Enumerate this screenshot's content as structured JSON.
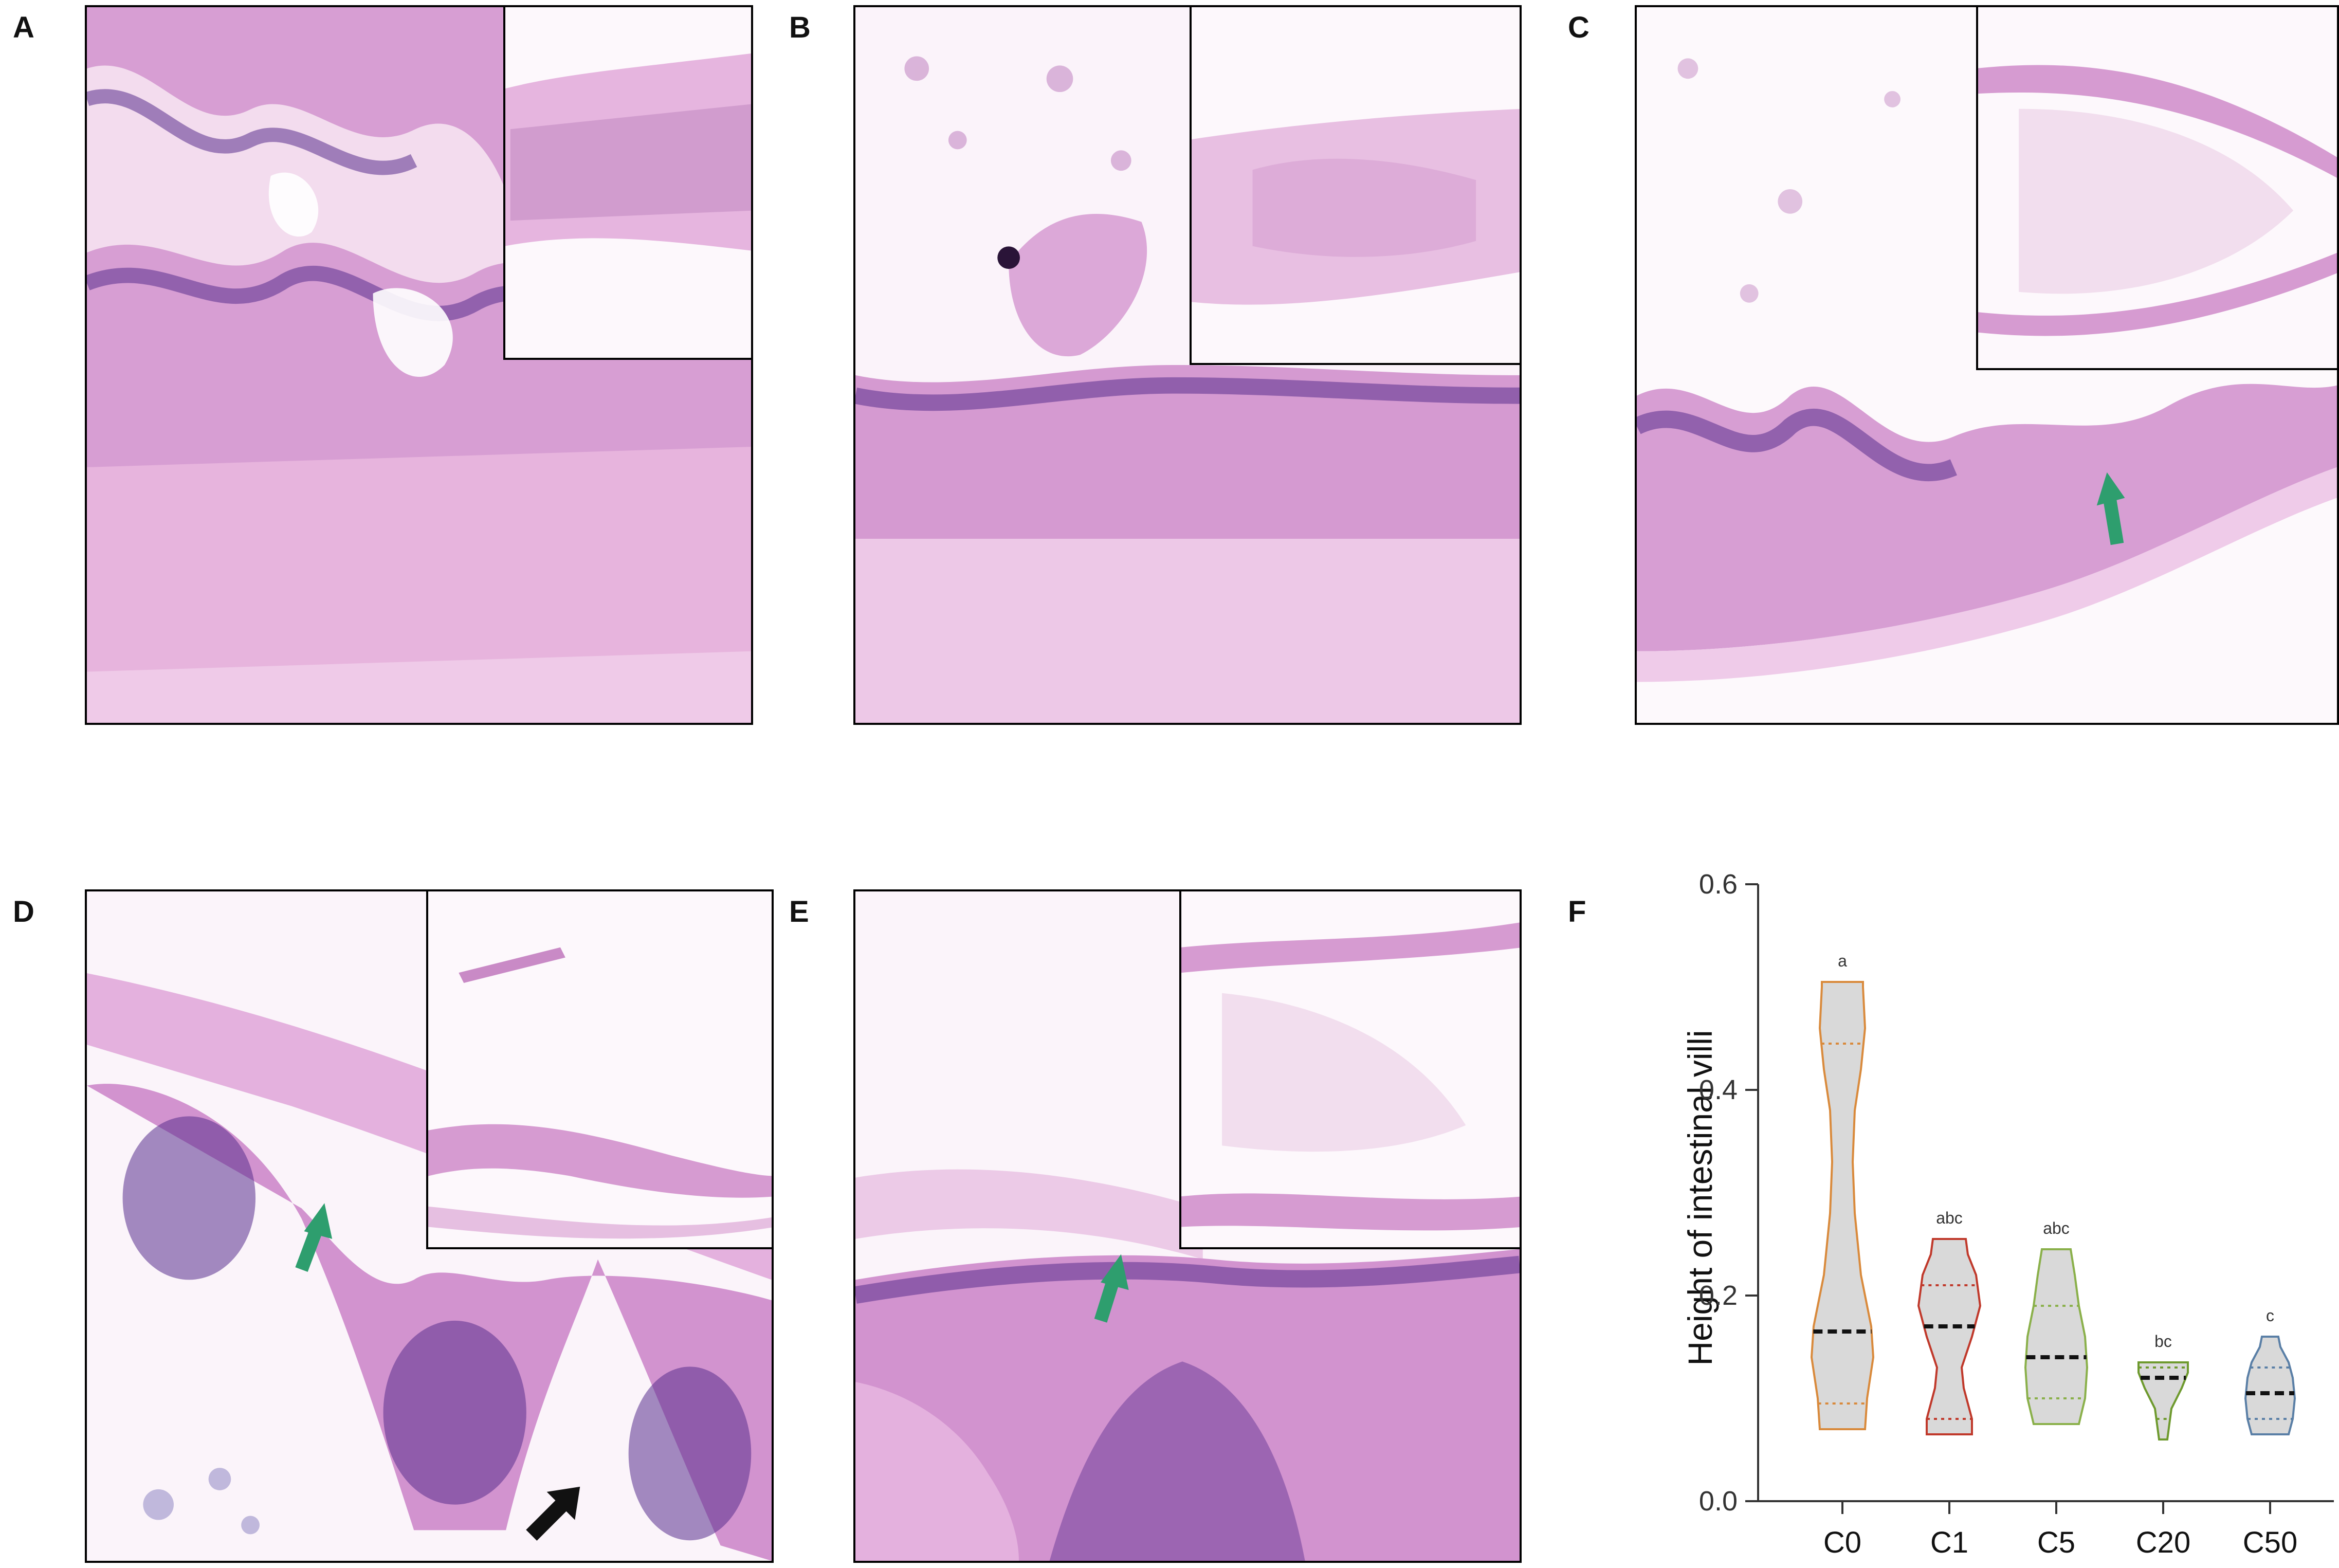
{
  "panels": [
    {
      "label": "A"
    },
    {
      "label": "B"
    },
    {
      "label": "C"
    },
    {
      "label": "D"
    },
    {
      "label": "E"
    },
    {
      "label": "F"
    }
  ],
  "colors": {
    "tissue_light": "#e8b6dc",
    "tissue_mid": "#c77cc2",
    "nuclei": "#5a2f8e",
    "arrow_green": "#2e9e6e",
    "arrow_black": "#111111",
    "violin_fill": "#d9d9d9"
  },
  "chart_data": {
    "type": "violin",
    "ylabel": "Height of intestinal villi",
    "ylim": [
      0.0,
      0.6
    ],
    "yticks": [
      "0.0",
      "0.2",
      "0.4",
      "0.6"
    ],
    "categories": [
      "C0",
      "C1",
      "C5",
      "C20",
      "C50"
    ],
    "letters": [
      "a",
      "abc",
      "abc",
      "bc",
      "c"
    ],
    "groups": [
      {
        "name": "C0",
        "min": 0.07,
        "max": 0.505,
        "median": 0.165,
        "q1": 0.095,
        "q3": 0.445,
        "edge": "#d98a3c",
        "width_profile": [
          [
            0.07,
            0.55
          ],
          [
            0.1,
            0.6
          ],
          [
            0.14,
            0.75
          ],
          [
            0.17,
            0.7
          ],
          [
            0.22,
            0.45
          ],
          [
            0.28,
            0.3
          ],
          [
            0.33,
            0.25
          ],
          [
            0.38,
            0.3
          ],
          [
            0.42,
            0.45
          ],
          [
            0.46,
            0.55
          ],
          [
            0.5,
            0.5
          ],
          [
            0.505,
            0.5
          ]
        ]
      },
      {
        "name": "C1",
        "min": 0.065,
        "max": 0.255,
        "median": 0.17,
        "q1": 0.08,
        "q3": 0.21,
        "edge": "#c0392b",
        "width_profile": [
          [
            0.065,
            0.55
          ],
          [
            0.08,
            0.55
          ],
          [
            0.11,
            0.35
          ],
          [
            0.13,
            0.3
          ],
          [
            0.16,
            0.55
          ],
          [
            0.19,
            0.75
          ],
          [
            0.22,
            0.65
          ],
          [
            0.24,
            0.45
          ],
          [
            0.255,
            0.4
          ]
        ]
      },
      {
        "name": "C5",
        "min": 0.075,
        "max": 0.245,
        "median": 0.14,
        "q1": 0.1,
        "q3": 0.19,
        "edge": "#8ab04a",
        "width_profile": [
          [
            0.075,
            0.55
          ],
          [
            0.1,
            0.7
          ],
          [
            0.13,
            0.75
          ],
          [
            0.16,
            0.7
          ],
          [
            0.19,
            0.55
          ],
          [
            0.22,
            0.45
          ],
          [
            0.245,
            0.35
          ]
        ]
      },
      {
        "name": "C20",
        "min": 0.06,
        "max": 0.135,
        "median": 0.12,
        "q1": 0.08,
        "q3": 0.13,
        "edge": "#6e9a2e",
        "width_profile": [
          [
            0.06,
            0.1
          ],
          [
            0.075,
            0.15
          ],
          [
            0.09,
            0.2
          ],
          [
            0.11,
            0.45
          ],
          [
            0.125,
            0.6
          ],
          [
            0.135,
            0.6
          ]
        ]
      },
      {
        "name": "C50",
        "min": 0.065,
        "max": 0.16,
        "median": 0.105,
        "q1": 0.08,
        "q3": 0.13,
        "edge": "#5a7fa6",
        "width_profile": [
          [
            0.065,
            0.45
          ],
          [
            0.08,
            0.55
          ],
          [
            0.1,
            0.6
          ],
          [
            0.12,
            0.55
          ],
          [
            0.135,
            0.45
          ],
          [
            0.15,
            0.25
          ],
          [
            0.16,
            0.2
          ]
        ]
      }
    ]
  }
}
